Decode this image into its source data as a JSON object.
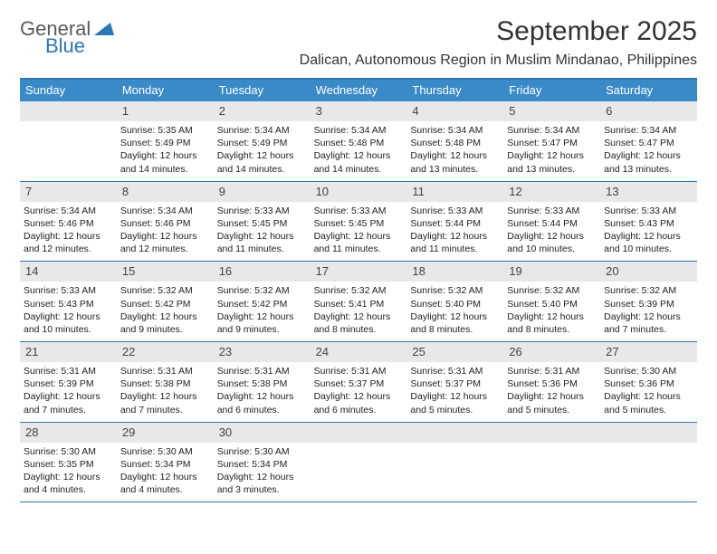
{
  "logo": {
    "word1": "General",
    "word2": "Blue"
  },
  "title": "September 2025",
  "subtitle": "Dalican, Autonomous Region in Muslim Mindanao, Philippines",
  "colors": {
    "header_bar": "#3a8ac8",
    "border": "#2f76b5",
    "daynum_bg": "#e8e8e8",
    "text": "#222222",
    "logo_gray": "#5a5a5a",
    "logo_blue": "#2f76b5",
    "background": "#ffffff"
  },
  "weekdays": [
    "Sunday",
    "Monday",
    "Tuesday",
    "Wednesday",
    "Thursday",
    "Friday",
    "Saturday"
  ],
  "weeks": [
    [
      {
        "n": "",
        "sr": "",
        "ss": "",
        "dl": ""
      },
      {
        "n": "1",
        "sr": "Sunrise: 5:35 AM",
        "ss": "Sunset: 5:49 PM",
        "dl": "Daylight: 12 hours and 14 minutes."
      },
      {
        "n": "2",
        "sr": "Sunrise: 5:34 AM",
        "ss": "Sunset: 5:49 PM",
        "dl": "Daylight: 12 hours and 14 minutes."
      },
      {
        "n": "3",
        "sr": "Sunrise: 5:34 AM",
        "ss": "Sunset: 5:48 PM",
        "dl": "Daylight: 12 hours and 14 minutes."
      },
      {
        "n": "4",
        "sr": "Sunrise: 5:34 AM",
        "ss": "Sunset: 5:48 PM",
        "dl": "Daylight: 12 hours and 13 minutes."
      },
      {
        "n": "5",
        "sr": "Sunrise: 5:34 AM",
        "ss": "Sunset: 5:47 PM",
        "dl": "Daylight: 12 hours and 13 minutes."
      },
      {
        "n": "6",
        "sr": "Sunrise: 5:34 AM",
        "ss": "Sunset: 5:47 PM",
        "dl": "Daylight: 12 hours and 13 minutes."
      }
    ],
    [
      {
        "n": "7",
        "sr": "Sunrise: 5:34 AM",
        "ss": "Sunset: 5:46 PM",
        "dl": "Daylight: 12 hours and 12 minutes."
      },
      {
        "n": "8",
        "sr": "Sunrise: 5:34 AM",
        "ss": "Sunset: 5:46 PM",
        "dl": "Daylight: 12 hours and 12 minutes."
      },
      {
        "n": "9",
        "sr": "Sunrise: 5:33 AM",
        "ss": "Sunset: 5:45 PM",
        "dl": "Daylight: 12 hours and 11 minutes."
      },
      {
        "n": "10",
        "sr": "Sunrise: 5:33 AM",
        "ss": "Sunset: 5:45 PM",
        "dl": "Daylight: 12 hours and 11 minutes."
      },
      {
        "n": "11",
        "sr": "Sunrise: 5:33 AM",
        "ss": "Sunset: 5:44 PM",
        "dl": "Daylight: 12 hours and 11 minutes."
      },
      {
        "n": "12",
        "sr": "Sunrise: 5:33 AM",
        "ss": "Sunset: 5:44 PM",
        "dl": "Daylight: 12 hours and 10 minutes."
      },
      {
        "n": "13",
        "sr": "Sunrise: 5:33 AM",
        "ss": "Sunset: 5:43 PM",
        "dl": "Daylight: 12 hours and 10 minutes."
      }
    ],
    [
      {
        "n": "14",
        "sr": "Sunrise: 5:33 AM",
        "ss": "Sunset: 5:43 PM",
        "dl": "Daylight: 12 hours and 10 minutes."
      },
      {
        "n": "15",
        "sr": "Sunrise: 5:32 AM",
        "ss": "Sunset: 5:42 PM",
        "dl": "Daylight: 12 hours and 9 minutes."
      },
      {
        "n": "16",
        "sr": "Sunrise: 5:32 AM",
        "ss": "Sunset: 5:42 PM",
        "dl": "Daylight: 12 hours and 9 minutes."
      },
      {
        "n": "17",
        "sr": "Sunrise: 5:32 AM",
        "ss": "Sunset: 5:41 PM",
        "dl": "Daylight: 12 hours and 8 minutes."
      },
      {
        "n": "18",
        "sr": "Sunrise: 5:32 AM",
        "ss": "Sunset: 5:40 PM",
        "dl": "Daylight: 12 hours and 8 minutes."
      },
      {
        "n": "19",
        "sr": "Sunrise: 5:32 AM",
        "ss": "Sunset: 5:40 PM",
        "dl": "Daylight: 12 hours and 8 minutes."
      },
      {
        "n": "20",
        "sr": "Sunrise: 5:32 AM",
        "ss": "Sunset: 5:39 PM",
        "dl": "Daylight: 12 hours and 7 minutes."
      }
    ],
    [
      {
        "n": "21",
        "sr": "Sunrise: 5:31 AM",
        "ss": "Sunset: 5:39 PM",
        "dl": "Daylight: 12 hours and 7 minutes."
      },
      {
        "n": "22",
        "sr": "Sunrise: 5:31 AM",
        "ss": "Sunset: 5:38 PM",
        "dl": "Daylight: 12 hours and 7 minutes."
      },
      {
        "n": "23",
        "sr": "Sunrise: 5:31 AM",
        "ss": "Sunset: 5:38 PM",
        "dl": "Daylight: 12 hours and 6 minutes."
      },
      {
        "n": "24",
        "sr": "Sunrise: 5:31 AM",
        "ss": "Sunset: 5:37 PM",
        "dl": "Daylight: 12 hours and 6 minutes."
      },
      {
        "n": "25",
        "sr": "Sunrise: 5:31 AM",
        "ss": "Sunset: 5:37 PM",
        "dl": "Daylight: 12 hours and 5 minutes."
      },
      {
        "n": "26",
        "sr": "Sunrise: 5:31 AM",
        "ss": "Sunset: 5:36 PM",
        "dl": "Daylight: 12 hours and 5 minutes."
      },
      {
        "n": "27",
        "sr": "Sunrise: 5:30 AM",
        "ss": "Sunset: 5:36 PM",
        "dl": "Daylight: 12 hours and 5 minutes."
      }
    ],
    [
      {
        "n": "28",
        "sr": "Sunrise: 5:30 AM",
        "ss": "Sunset: 5:35 PM",
        "dl": "Daylight: 12 hours and 4 minutes."
      },
      {
        "n": "29",
        "sr": "Sunrise: 5:30 AM",
        "ss": "Sunset: 5:34 PM",
        "dl": "Daylight: 12 hours and 4 minutes."
      },
      {
        "n": "30",
        "sr": "Sunrise: 5:30 AM",
        "ss": "Sunset: 5:34 PM",
        "dl": "Daylight: 12 hours and 3 minutes."
      },
      {
        "n": "",
        "sr": "",
        "ss": "",
        "dl": ""
      },
      {
        "n": "",
        "sr": "",
        "ss": "",
        "dl": ""
      },
      {
        "n": "",
        "sr": "",
        "ss": "",
        "dl": ""
      },
      {
        "n": "",
        "sr": "",
        "ss": "",
        "dl": ""
      }
    ]
  ]
}
